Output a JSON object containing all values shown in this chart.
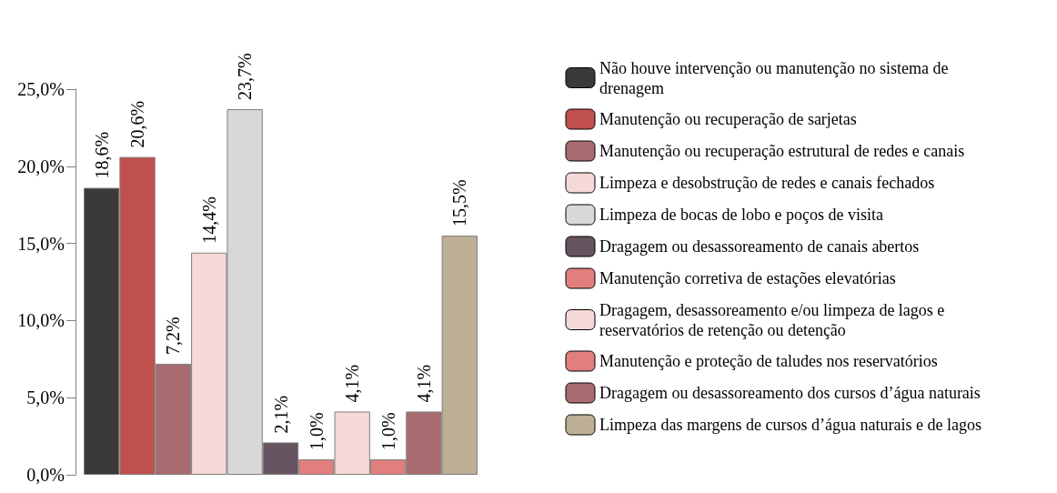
{
  "chart_data": {
    "type": "bar",
    "categories": [
      null
    ],
    "ylim": [
      0,
      25
    ],
    "yticks": [
      {
        "value": 0,
        "label": "0,0%"
      },
      {
        "value": 5,
        "label": "5,0%"
      },
      {
        "value": 10,
        "label": "10,0%"
      },
      {
        "value": 15,
        "label": "15,0%"
      },
      {
        "value": 20,
        "label": "20,0%"
      },
      {
        "value": 25,
        "label": "25,0%"
      }
    ],
    "grid": false,
    "legend": "right",
    "series": [
      {
        "name": "Não houve intervenção ou manutenção no sistema de drenagem",
        "color": "#3b3a38",
        "values": [
          18.6
        ],
        "value_labels": [
          "18,6%"
        ]
      },
      {
        "name": "Manutenção ou recuperação de sarjetas",
        "color": "#c0504d",
        "values": [
          20.6
        ],
        "value_labels": [
          "20,6%"
        ]
      },
      {
        "name": "Manutenção ou recuperação estrutural de redes e canais",
        "color": "#a86b70",
        "values": [
          7.2
        ],
        "value_labels": [
          "7,2%"
        ]
      },
      {
        "name": "Limpeza e desobstrução de redes e canais fechados",
        "color": "#f4d9d7",
        "values": [
          14.4
        ],
        "value_labels": [
          "14,4%"
        ]
      },
      {
        "name": "Limpeza de bocas de lobo e poços de visita",
        "color": "#d8d8d8",
        "values": [
          23.7
        ],
        "value_labels": [
          "23,7%"
        ]
      },
      {
        "name": "Dragagem ou desassoreamento de canais abertos",
        "color": "#65535f",
        "values": [
          2.1
        ],
        "value_labels": [
          "2,1%"
        ]
      },
      {
        "name": "Manutenção corretiva de estações elevatórias",
        "color": "#e07f7e",
        "values": [
          1.0
        ],
        "value_labels": [
          "1,0%"
        ]
      },
      {
        "name": "Dragagem, desassoreamento e/ou limpeza de lagos e reservatórios de retenção ou detenção",
        "color": "#f4d9d7",
        "values": [
          4.1
        ],
        "value_labels": [
          "4,1%"
        ]
      },
      {
        "name": "Manutenção e proteção de taludes nos reservatórios",
        "color": "#e07f7e",
        "values": [
          1.0
        ],
        "value_labels": [
          "1,0%"
        ]
      },
      {
        "name": "Dragagem ou desassoreamento dos cursos d’água naturais",
        "color": "#a86b70",
        "values": [
          4.1
        ],
        "value_labels": [
          "4,1%"
        ]
      },
      {
        "name": "Limpeza das margens de cursos d’água naturais e de lagos",
        "color": "#bdae96",
        "values": [
          15.5
        ],
        "value_labels": [
          "15,5%"
        ]
      }
    ]
  }
}
